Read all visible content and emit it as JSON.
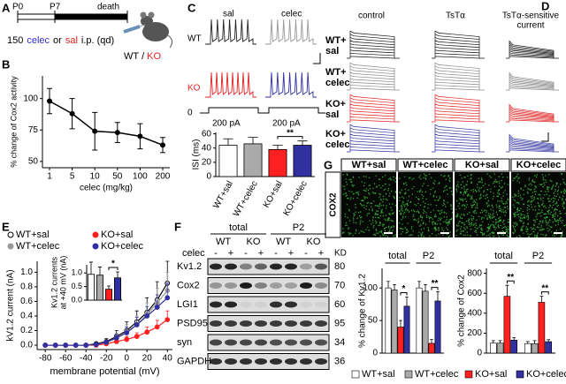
{
  "panel_labels": [
    "A",
    "B",
    "C",
    "D",
    "E",
    "F",
    "G"
  ],
  "panel_a": {
    "p0": "P0",
    "p7": "P7",
    "death": "death",
    "dose": "150",
    "celec": "celec",
    "or": "or",
    "sal": "sal",
    "route": "i.p. (qd)",
    "wt": "WT",
    "slash": "/",
    "ko": "KO"
  },
  "panel_c_traces": {
    "sal": "sal",
    "celec": "celec",
    "wt": "WT",
    "ko": "KO",
    "zero": "0",
    "current_left": "200 pA",
    "current_right": "200 pA"
  },
  "panel_d": {
    "columns": [
      "control",
      "TsTα",
      [
        "TsTα-sensitive",
        "current"
      ]
    ],
    "rows": [
      [
        "WT+",
        "sal"
      ],
      [
        "WT+",
        "celec"
      ],
      [
        "KO+",
        "sal"
      ],
      [
        "KO+",
        "celec"
      ]
    ]
  },
  "panel_g": {
    "columns": [
      "WT+sal",
      "WT+celec",
      "KO+sal",
      "KO+celec"
    ],
    "row_label": "COX2"
  },
  "panel_f_blot": {
    "groups": [
      "total",
      "P2"
    ],
    "genotypes": [
      "WT",
      "KO",
      "WT",
      "KO"
    ],
    "treatment_label": "celec",
    "treatments": [
      "-",
      "+",
      "-",
      "+",
      "-",
      "+",
      "-",
      "+"
    ],
    "kd_label": "KD",
    "proteins": [
      "Kv1.2",
      "Cox2",
      "LGI1",
      "PSD95",
      "syn",
      "GAPDH"
    ],
    "kd": [
      80,
      70,
      60,
      95,
      34,
      36
    ]
  },
  "chart_data": [
    {
      "type": "line",
      "y_label": "% change of Cox2 activity",
      "x_label": "celec (mg/kg)",
      "categories": [
        "1",
        "5",
        "10",
        "50",
        "100",
        "200"
      ],
      "values": [
        98,
        88,
        74,
        73,
        70,
        63
      ],
      "errors": [
        10,
        12,
        15,
        8,
        10,
        6
      ],
      "color": "#000000",
      "ylim": [
        45,
        118
      ],
      "yticks": [
        50,
        75,
        100
      ]
    },
    {
      "type": "bar",
      "y_label": "ISI (ms)",
      "categories": [
        "WT+sal",
        "WT+celec",
        "KO+sal",
        "KO+celec"
      ],
      "values": [
        44,
        46,
        38,
        44
      ],
      "errors": [
        9,
        9,
        6,
        6
      ],
      "colors": [
        "#ffffff",
        "#aaaaaa",
        "#ff2020",
        "#3030a0"
      ],
      "ylim": [
        0,
        62
      ],
      "yticks": [
        0,
        20,
        40,
        60
      ],
      "significance": "**"
    },
    {
      "type": "line",
      "y_label": "kV1.2 current (nA)",
      "x_label": "membrane potential (mV)",
      "x": [
        -80,
        -70,
        -60,
        -50,
        -40,
        -30,
        -20,
        -10,
        0,
        10,
        20,
        30,
        40
      ],
      "series": [
        {
          "name": "WT+sal",
          "color": "#000000",
          "marker_fill": "#ffffff",
          "values": [
            0,
            0,
            0,
            0,
            0,
            0.02,
            0.05,
            0.12,
            0.2,
            0.32,
            0.45,
            0.62,
            0.85
          ],
          "errors": [
            0,
            0,
            0,
            0,
            0.01,
            0.02,
            0.04,
            0.08,
            0.12,
            0.15,
            0.2,
            0.25,
            0.3
          ]
        },
        {
          "name": "KO+sal",
          "color": "#ff2020",
          "marker_fill": "#ff2020",
          "values": [
            0,
            0,
            0,
            0,
            0,
            0,
            0.02,
            0.05,
            0.08,
            0.12,
            0.18,
            0.25,
            0.35
          ],
          "errors": [
            0,
            0,
            0,
            0,
            0,
            0.01,
            0.01,
            0.02,
            0.04,
            0.05,
            0.07,
            0.09,
            0.12
          ]
        },
        {
          "name": "WT+celec",
          "color": "#999999",
          "marker_fill": "#999999",
          "values": [
            0,
            0,
            0,
            0,
            0,
            0.01,
            0.04,
            0.1,
            0.18,
            0.28,
            0.42,
            0.58,
            0.75
          ],
          "errors": [
            0,
            0,
            0,
            0,
            0.01,
            0.02,
            0.03,
            0.06,
            0.1,
            0.12,
            0.16,
            0.2,
            0.25
          ]
        },
        {
          "name": "KO+celec",
          "color": "#3030a0",
          "marker_fill": "#3030a0",
          "values": [
            0,
            0,
            0,
            0,
            0,
            0.01,
            0.04,
            0.1,
            0.17,
            0.28,
            0.4,
            0.52,
            0.65
          ],
          "errors": [
            0,
            0,
            0,
            0,
            0.01,
            0.02,
            0.03,
            0.05,
            0.08,
            0.1,
            0.13,
            0.17,
            0.2
          ]
        }
      ],
      "xlim": [
        -88,
        45
      ],
      "xticks": [
        -80,
        -60,
        -40,
        -20,
        0,
        20,
        40
      ],
      "ylim": [
        -0.06,
        1.15
      ],
      "yticks": [
        {
          "value": 0,
          "label": "0.0"
        },
        0.2,
        0.4,
        0.6,
        0.8,
        {
          "value": 1,
          "label": "1.0"
        }
      ]
    },
    {
      "type": "bar",
      "y_label": [
        "Kv1.2 currents",
        "at +40 mV (nA)"
      ],
      "values": [
        0.95,
        0.92,
        0.4,
        0.82
      ],
      "errors": [
        0.45,
        0.3,
        0.12,
        0.22
      ],
      "colors": [
        "#ffffff",
        "#aaaaaa",
        "#ff2020",
        "#3030a0"
      ],
      "ylim": [
        0,
        1.3
      ],
      "yticks": [
        {
          "value": 0,
          "label": "0.0"
        },
        0.5,
        {
          "value": 1,
          "label": "1.0"
        }
      ],
      "significance": "*"
    },
    {
      "type": "grouped_bar",
      "y_label": "% change of Kv1.2",
      "groups": [
        "total",
        "P2"
      ],
      "series": [
        {
          "name": "WT+sal",
          "color": "#ffffff",
          "values": [
            100,
            100
          ],
          "errors": [
            10,
            10
          ]
        },
        {
          "name": "WT+celec",
          "color": "#aaaaaa",
          "values": [
            97,
            95
          ],
          "errors": [
            8,
            10
          ]
        },
        {
          "name": "KO+sal",
          "color": "#ff2020",
          "values": [
            40,
            15
          ],
          "errors": [
            10,
            6
          ]
        },
        {
          "name": "KO+celec",
          "color": "#3030a0",
          "values": [
            72,
            80
          ],
          "errors": [
            14,
            14
          ]
        }
      ],
      "ylim": [
        0,
        130
      ],
      "yticks": [
        0,
        50,
        100
      ],
      "significance": [
        "*",
        "**"
      ]
    },
    {
      "type": "grouped_bar",
      "y_label": "% change of Cox2",
      "groups": [
        "total",
        "P2"
      ],
      "series": [
        {
          "color": "#ffffff",
          "values": [
            100,
            95
          ],
          "errors": [
            25,
            20
          ]
        },
        {
          "color": "#aaaaaa",
          "values": [
            100,
            95
          ],
          "errors": [
            25,
            30
          ]
        },
        {
          "color": "#ff2020",
          "values": [
            570,
            510
          ],
          "errors": [
            110,
            60
          ]
        },
        {
          "color": "#3030a0",
          "values": [
            130,
            115
          ],
          "errors": [
            25,
            20
          ]
        }
      ],
      "ylim": [
        0,
        850
      ],
      "yticks": [
        0,
        200,
        400,
        600,
        800
      ],
      "significance": [
        "**",
        "**"
      ]
    }
  ]
}
